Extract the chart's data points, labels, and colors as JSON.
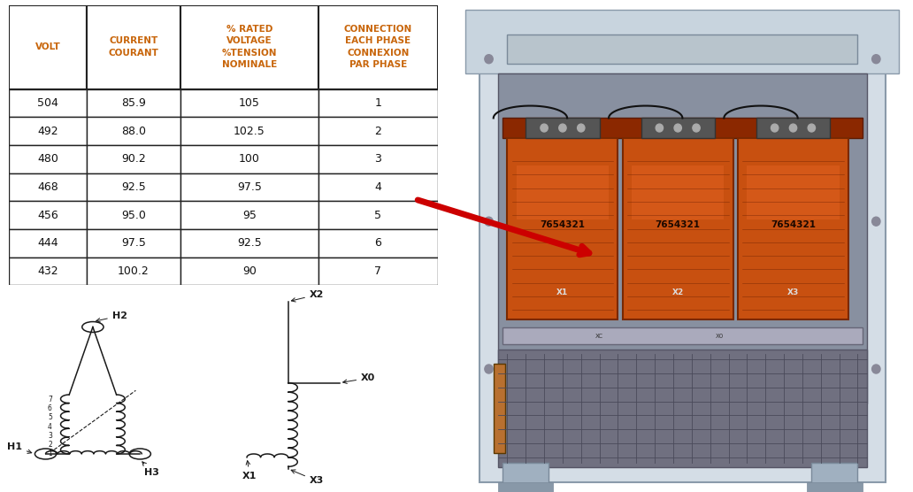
{
  "table_headers": [
    "VOLT",
    "CURRENT\nCOURANT",
    "% RATED\nVOLTAGE\n%TENSION\nNOMINALE",
    "CONNECTION\nEACH PHASE\nCONNEXION\nPAR PHASE"
  ],
  "table_data": [
    [
      "504",
      "85.9",
      "105",
      "1"
    ],
    [
      "492",
      "88.0",
      "102.5",
      "2"
    ],
    [
      "480",
      "90.2",
      "100",
      "3"
    ],
    [
      "468",
      "92.5",
      "97.5",
      "4"
    ],
    [
      "456",
      "95.0",
      "95",
      "5"
    ],
    [
      "444",
      "97.5",
      "92.5",
      "6"
    ],
    [
      "432",
      "100.2",
      "90",
      "7"
    ]
  ],
  "header_color": "#c8650a",
  "data_color": "#111111",
  "table_border_color": "#222222",
  "bg_color": "#ffffff",
  "arrow_color": "#cc0000",
  "schem_color": "#1a1a1a"
}
